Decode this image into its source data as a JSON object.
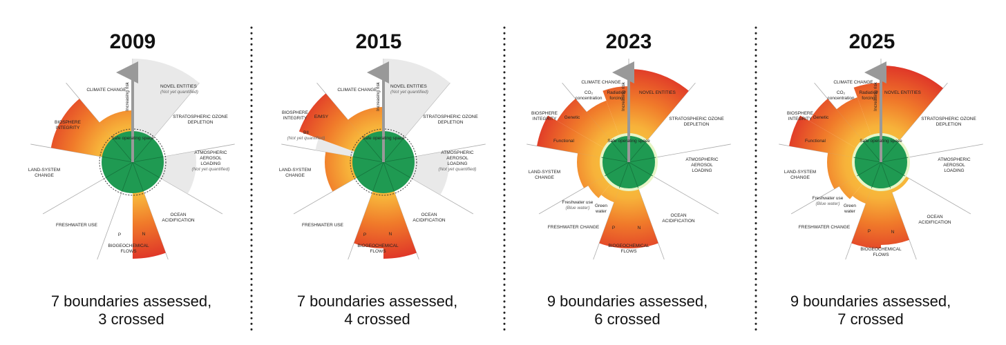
{
  "panels": [
    {
      "year": "2009",
      "caption": [
        "7 boundaries assessed,",
        "3 crossed"
      ],
      "axis_label": "Increasing risk",
      "safe_label": "Safe operating space",
      "labels": [
        [
          "CLIMATE CHANGE"
        ],
        [
          "NOVEL ENTITIES",
          "(Not yet quantified)"
        ],
        [
          "STRATOSPHERIC OZONE",
          "DEPLETION"
        ],
        [
          "ATMOSPHERIC",
          "AEROSOL",
          "LOADING",
          "(Not yet quantified)"
        ],
        [
          "OCEAN",
          "ACIDIFICATION"
        ],
        [
          "BIOGEOCHEMICAL",
          "FLOWS"
        ],
        [
          "N"
        ],
        [
          "P"
        ],
        [
          "FRESHWATER USE"
        ],
        [
          "LAND-SYSTEM",
          "CHANGE"
        ],
        [
          "BIOSPHERE",
          "INTEGRITY"
        ]
      ]
    },
    {
      "year": "2015",
      "caption": [
        "7 boundaries assessed,",
        "4 crossed"
      ],
      "axis_label": "Increasing risk",
      "safe_label": "Safe operating space",
      "labels": [
        [
          "CLIMATE CHANGE"
        ],
        [
          "NOVEL ENTITIES",
          "(Not yet quantified)"
        ],
        [
          "STRATOSPHERIC OZONE",
          "DEPLETION"
        ],
        [
          "ATMOSPHERIC",
          "AEROSOL",
          "LOADING",
          "(Not yet quantified)"
        ],
        [
          "OCEAN",
          "ACIDIFICATION"
        ],
        [
          "BIOGEOCHEMICAL",
          "FLOWS"
        ],
        [
          "N"
        ],
        [
          "P"
        ],
        [
          "FRESHWATER USE"
        ],
        [
          "LAND-SYSTEM",
          "CHANGE"
        ],
        [
          "BIOSPHERE",
          "INTEGRITY"
        ],
        [
          "E/MSY"
        ],
        [
          "BII",
          "(Not yet quantified)"
        ]
      ]
    },
    {
      "year": "2023",
      "caption": [
        "9 boundaries assessed,",
        "6 crossed"
      ],
      "axis_label": "Increasing risk",
      "safe_label": "Safe operating space",
      "labels": [
        [
          "CLIMATE CHANGE"
        ],
        [
          "NOVEL ENTITIES"
        ],
        [
          "STRATOSPHERIC OZONE",
          "DEPLETION"
        ],
        [
          "ATMOSPHERIC",
          "AEROSOL",
          "LOADING"
        ],
        [
          "OCEAN",
          "ACIDIFICATION"
        ],
        [
          "BIOGEOCHEMICAL",
          "FLOWS"
        ],
        [
          "N"
        ],
        [
          "P"
        ],
        [
          "FRESHWATER CHANGE"
        ],
        [
          "LAND-SYSTEM",
          "CHANGE"
        ],
        [
          "BIOSPHERE",
          "INTEGRITY"
        ],
        [
          "Genetic"
        ],
        [
          "Functional"
        ],
        [
          "CO₂",
          "concentration"
        ],
        [
          "Radiative",
          "forcing"
        ],
        [
          "Freshwater use",
          "(Blue water)"
        ],
        [
          "Green",
          "water"
        ]
      ]
    },
    {
      "year": "2025",
      "caption": [
        "9 boundaries assessed,",
        "7 crossed"
      ],
      "axis_label": "Increasing risk",
      "safe_label": "Safe operating space",
      "labels": [
        [
          "CLIMATE CHANGE"
        ],
        [
          "NOVEL ENTITIES"
        ],
        [
          "STRATOSPHERIC OZONE",
          "DEPLETION"
        ],
        [
          "ATMOSPHERIC",
          "AEROSOL",
          "LOADING"
        ],
        [
          "OCEAN",
          "ACIDIFICATION"
        ],
        [
          "BIOGEOCHEMICAL",
          "FLOWS"
        ],
        [
          "N"
        ],
        [
          "P"
        ],
        [
          "FRESHWATER CHANGE"
        ],
        [
          "LAND-SYSTEM",
          "CHANGE"
        ],
        [
          "BIOSPHERE",
          "INTEGRITY"
        ],
        [
          "Genetic"
        ],
        [
          "Functional"
        ],
        [
          "CO₂",
          "concentration"
        ],
        [
          "Radiative",
          "forcing"
        ],
        [
          "Freshwater use",
          "(Blue water)"
        ],
        [
          "Green",
          "water"
        ]
      ]
    }
  ]
}
